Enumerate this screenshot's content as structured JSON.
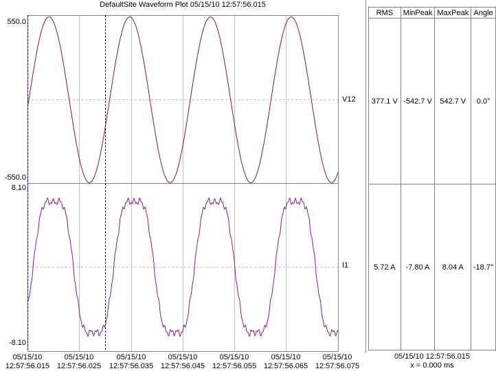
{
  "title": "DefaultSite  Waveform Plot  05/15/10  12:57:56.015",
  "channels": [
    {
      "label": "V12",
      "ymax": "550.0",
      "ymin": "-550.0",
      "color": "#8b1a1a",
      "amplitude": 542.7
    },
    {
      "label": "I1",
      "ymax": "8.10",
      "ymin": "-8.10",
      "color": "#8b1a8b",
      "amplitude": 8.04
    }
  ],
  "x_ticks": [
    {
      "date": "05/15/10",
      "time": "12:57:56.015"
    },
    {
      "date": "05/15/10",
      "time": "12:57:56.025"
    },
    {
      "date": "05/15/10",
      "time": "12:57:56.035"
    },
    {
      "date": "05/15/10",
      "time": "12:57:56.045"
    },
    {
      "date": "05/15/10",
      "time": "12:57:56.055"
    },
    {
      "date": "05/15/10",
      "time": "12:57:56.065"
    },
    {
      "date": "05/15/10",
      "time": "12:57:56.075"
    }
  ],
  "table": {
    "headers": [
      "RMS",
      "MinPeak",
      "MaxPeak",
      "Angle"
    ],
    "rows": [
      [
        "377.1 V",
        "-542.7 V",
        "542.7 V",
        "0.0°"
      ],
      [
        "5.72 A",
        "-7.80 A",
        "8.04 A",
        "-18.7°"
      ]
    ]
  },
  "cursor": {
    "time": "05/15/10  12:57:56.015",
    "x": "x = 0.000 ms"
  },
  "colors": {
    "grid": "#c0c0c0",
    "cursor": "#000080",
    "border": "#808080"
  }
}
